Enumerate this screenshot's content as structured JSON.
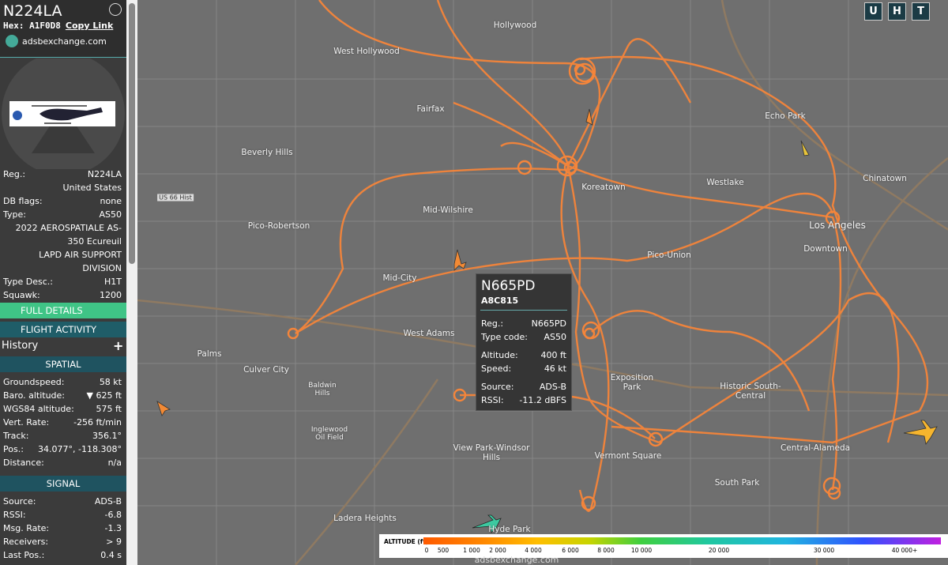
{
  "aircraft": {
    "callsign": "N224LA",
    "hex_label": "Hex:",
    "hex": "A1F0D8",
    "copy_link": "Copy Link",
    "source_site": "adsbexchange.com"
  },
  "details": [
    {
      "label": "Reg.:",
      "value": "N224LA"
    },
    {
      "value": "United States"
    },
    {
      "label": "DB flags:",
      "value": "none"
    },
    {
      "label": "Type:",
      "value": "AS50"
    },
    {
      "value": "2022 AEROSPATIALE AS-350 Ecureuil"
    },
    {
      "value": "LAPD AIR SUPPORT DIVISION"
    },
    {
      "label": "Type Desc.:",
      "value": "H1T"
    },
    {
      "label": "Squawk:",
      "value": "1200"
    }
  ],
  "buttons": {
    "full_details": "FULL DETAILS",
    "flight_activity": "FLIGHT ACTIVITY"
  },
  "history": "History",
  "spatial": {
    "title": "SPATIAL",
    "rows": [
      {
        "label": "Groundspeed:",
        "value": "58 kt"
      },
      {
        "label": "Baro. altitude:",
        "value": "▼ 625 ft"
      },
      {
        "label": "WGS84 altitude:",
        "value": "575 ft"
      },
      {
        "label": "Vert. Rate:",
        "value": "-256 ft/min"
      },
      {
        "label": "Track:",
        "value": "356.1°"
      },
      {
        "label": "Pos.:",
        "value": "34.077°, -118.308°"
      },
      {
        "label": "Distance:",
        "value": "n/a"
      }
    ]
  },
  "signal": {
    "title": "SIGNAL",
    "rows": [
      {
        "label": "Source:",
        "value": "ADS-B"
      },
      {
        "label": "RSSI:",
        "value": "-6.8"
      },
      {
        "label": "Msg. Rate:",
        "value": "-1.3"
      },
      {
        "label": "Receivers:",
        "value": "> 9"
      },
      {
        "label": "Last Pos.:",
        "value": "0.4 s"
      }
    ]
  },
  "map": {
    "buttons": [
      "U",
      "H",
      "T"
    ],
    "places": [
      "Hollywood",
      "West Hollywood",
      "Fairfax",
      "Beverly Hills",
      "Mid-Wilshire",
      "Pico-Robertson",
      "Koreatown",
      "Westlake",
      "Echo Park",
      "Chinatown",
      "Los Angeles",
      "Downtown",
      "Pico-Union",
      "Mid-City",
      "West Adams",
      "Palms",
      "Culver City",
      "Exposition Park",
      "Historic South-Central",
      "Baldwin Hills",
      "Inglewood Oil Field",
      "View Park-Windsor Hills",
      "Vermont Square",
      "South Park",
      "Central-Alameda",
      "Ladera Heights",
      "Hyde Park",
      "US 66 Hist"
    ],
    "tooltip": {
      "reg": "N665PD",
      "hex": "A8C815",
      "rows": [
        {
          "label": "Reg.:",
          "value": "N665PD"
        },
        {
          "label": "Type code:",
          "value": "AS50"
        },
        {
          "label": "Altitude:",
          "value": "400 ft"
        },
        {
          "label": "Speed:",
          "value": "46 kt"
        },
        {
          "label": "Source:",
          "value": "ADS-B"
        },
        {
          "label": "RSSI:",
          "value": "-11.2 dBFS"
        }
      ]
    },
    "legend": {
      "title": "ALTITUDE (ft)",
      "labels": [
        "0",
        "500",
        "1 000",
        "2 000",
        "4 000",
        "6 000",
        "8 000",
        "10 000",
        "20 000",
        "30 000",
        "40 000+"
      ]
    },
    "footer": "adsbexchange.com"
  }
}
